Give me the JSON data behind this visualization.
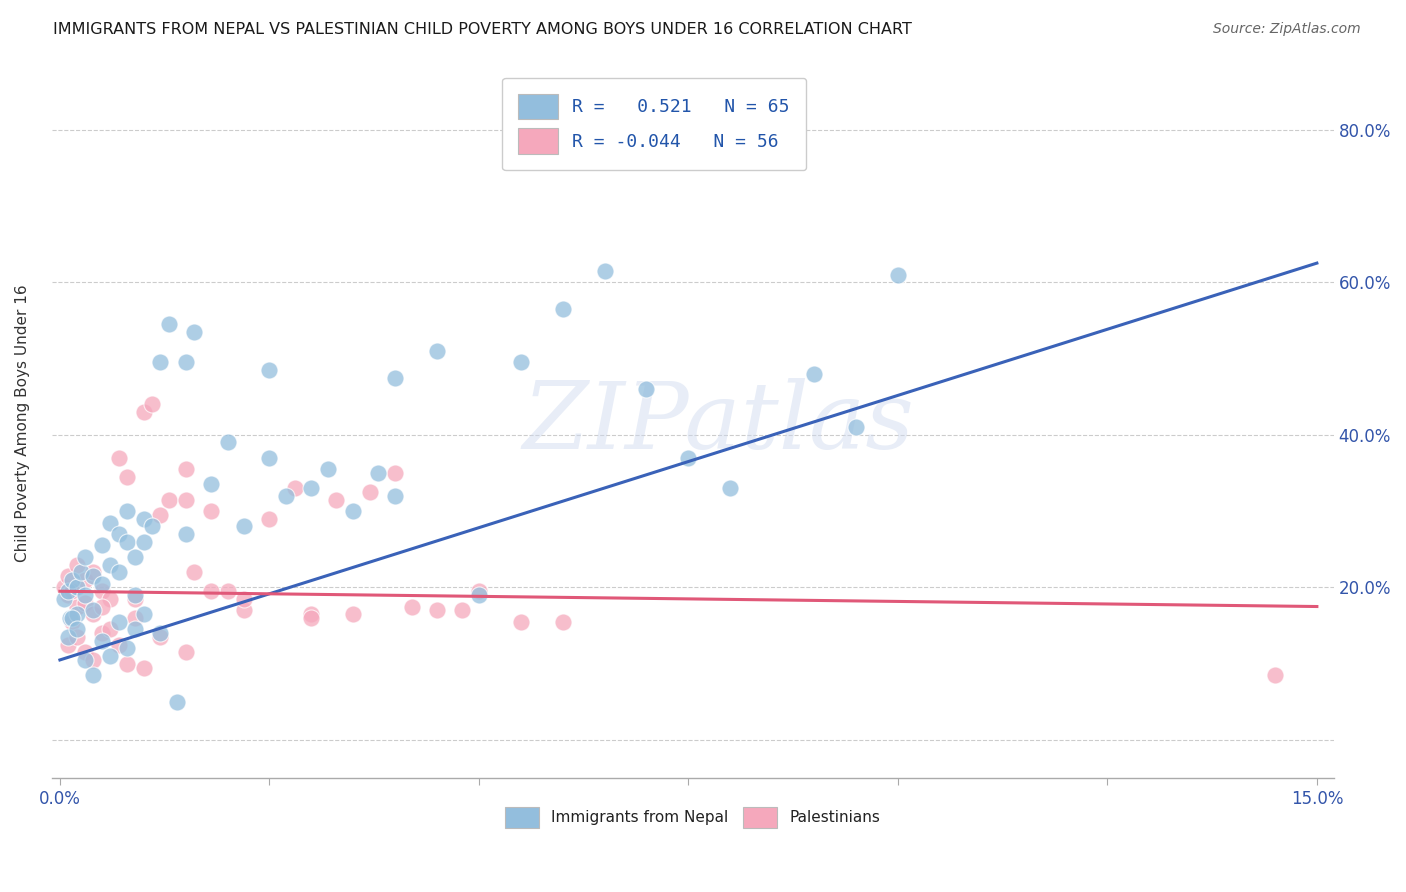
{
  "title": "IMMIGRANTS FROM NEPAL VS PALESTINIAN CHILD POVERTY AMONG BOYS UNDER 16 CORRELATION CHART",
  "source": "Source: ZipAtlas.com",
  "ylabel": "Child Poverty Among Boys Under 16",
  "xlim": [
    -0.001,
    0.152
  ],
  "ylim": [
    -0.05,
    0.88
  ],
  "xtick_positions": [
    0.0,
    0.025,
    0.05,
    0.075,
    0.1,
    0.125,
    0.15
  ],
  "xtick_labels": [
    "0.0%",
    "",
    "",
    "",
    "",
    "",
    "15.0%"
  ],
  "ytick_positions": [
    0.0,
    0.2,
    0.4,
    0.6,
    0.8
  ],
  "ytick_labels": [
    "",
    "20.0%",
    "40.0%",
    "60.0%",
    "80.0%"
  ],
  "series1_color": "#93bedd",
  "series2_color": "#f5a8bc",
  "series1_line_color": "#3a62b8",
  "series2_line_color": "#e05878",
  "watermark": "ZIPatlas",
  "legend1_label": "R =   0.521   N = 65",
  "legend2_label": "R = -0.044   N = 56",
  "cat_label1": "Immigrants from Nepal",
  "cat_label2": "Palestinians",
  "nepal_line_x0": 0.0,
  "nepal_line_y0": 0.105,
  "nepal_line_x1": 0.15,
  "nepal_line_y1": 0.625,
  "palest_line_x0": 0.0,
  "palest_line_y0": 0.195,
  "palest_line_x1": 0.15,
  "palest_line_y1": 0.175,
  "nepal_x": [
    0.0005,
    0.001,
    0.0012,
    0.0015,
    0.002,
    0.002,
    0.0025,
    0.003,
    0.003,
    0.004,
    0.004,
    0.005,
    0.005,
    0.006,
    0.006,
    0.007,
    0.007,
    0.008,
    0.008,
    0.009,
    0.009,
    0.01,
    0.01,
    0.011,
    0.012,
    0.013,
    0.015,
    0.015,
    0.016,
    0.018,
    0.02,
    0.022,
    0.025,
    0.025,
    0.027,
    0.03,
    0.032,
    0.035,
    0.038,
    0.04,
    0.04,
    0.045,
    0.05,
    0.055,
    0.06,
    0.065,
    0.07,
    0.075,
    0.08,
    0.09,
    0.095,
    0.1,
    0.001,
    0.0015,
    0.002,
    0.003,
    0.004,
    0.005,
    0.006,
    0.007,
    0.008,
    0.009,
    0.01,
    0.012,
    0.014
  ],
  "nepal_y": [
    0.185,
    0.195,
    0.16,
    0.21,
    0.2,
    0.165,
    0.22,
    0.19,
    0.24,
    0.215,
    0.17,
    0.205,
    0.255,
    0.285,
    0.23,
    0.27,
    0.22,
    0.26,
    0.3,
    0.24,
    0.19,
    0.26,
    0.29,
    0.28,
    0.495,
    0.545,
    0.495,
    0.27,
    0.535,
    0.335,
    0.39,
    0.28,
    0.37,
    0.485,
    0.32,
    0.33,
    0.355,
    0.3,
    0.35,
    0.475,
    0.32,
    0.51,
    0.19,
    0.495,
    0.565,
    0.615,
    0.46,
    0.37,
    0.33,
    0.48,
    0.41,
    0.61,
    0.135,
    0.16,
    0.145,
    0.105,
    0.085,
    0.13,
    0.11,
    0.155,
    0.12,
    0.145,
    0.165,
    0.14,
    0.05
  ],
  "palest_x": [
    0.0005,
    0.001,
    0.001,
    0.0015,
    0.002,
    0.002,
    0.003,
    0.003,
    0.004,
    0.004,
    0.005,
    0.005,
    0.006,
    0.007,
    0.008,
    0.009,
    0.01,
    0.011,
    0.012,
    0.013,
    0.015,
    0.015,
    0.016,
    0.018,
    0.02,
    0.022,
    0.025,
    0.028,
    0.03,
    0.033,
    0.035,
    0.037,
    0.04,
    0.042,
    0.045,
    0.048,
    0.05,
    0.055,
    0.06,
    0.001,
    0.0015,
    0.002,
    0.003,
    0.004,
    0.005,
    0.006,
    0.007,
    0.008,
    0.009,
    0.01,
    0.012,
    0.015,
    0.018,
    0.022,
    0.03,
    0.145
  ],
  "palest_y": [
    0.2,
    0.19,
    0.215,
    0.195,
    0.175,
    0.23,
    0.21,
    0.18,
    0.165,
    0.22,
    0.195,
    0.14,
    0.185,
    0.37,
    0.345,
    0.185,
    0.43,
    0.44,
    0.295,
    0.315,
    0.355,
    0.315,
    0.22,
    0.3,
    0.195,
    0.17,
    0.29,
    0.33,
    0.165,
    0.315,
    0.165,
    0.325,
    0.35,
    0.175,
    0.17,
    0.17,
    0.195,
    0.155,
    0.155,
    0.125,
    0.155,
    0.135,
    0.115,
    0.105,
    0.175,
    0.145,
    0.125,
    0.1,
    0.16,
    0.095,
    0.135,
    0.115,
    0.195,
    0.185,
    0.16,
    0.085
  ]
}
